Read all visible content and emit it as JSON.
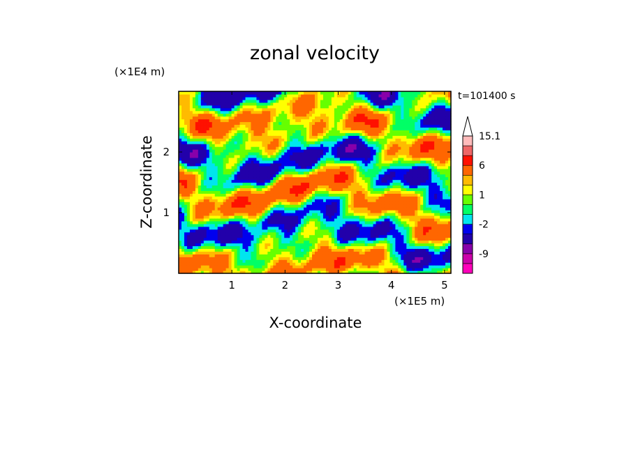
{
  "chart_data": {
    "type": "heatmap",
    "title": "zonal velocity",
    "xlabel": "X-coordinate",
    "ylabel": "Z-coordinate",
    "x_scale_label": "(×1E5 m)",
    "y_scale_label": "(×1E4 m)",
    "time_label": "t=101400 s",
    "xlim": [
      0,
      5.12
    ],
    "ylim": [
      0,
      3.0
    ],
    "x_ticks": [
      "1",
      "2",
      "3",
      "4",
      "5"
    ],
    "y_ticks": [
      "1",
      "2"
    ],
    "colorbar_levels": [
      -15,
      -12,
      -9,
      -6,
      -3,
      -2,
      -1,
      0,
      1,
      2,
      3,
      6,
      9,
      12,
      15.1
    ],
    "colorbar_tick_labels": [
      "15.1",
      "6",
      "1",
      "-2",
      "-9"
    ],
    "colorbar_colors": [
      "#ff00bb",
      "#cc00aa",
      "#8800aa",
      "#2200aa",
      "#0000ee",
      "#00e5ee",
      "#00ff66",
      "#66ff00",
      "#ffff00",
      "#ffbb00",
      "#ff6600",
      "#ff1100",
      "#ee6666",
      "#ffbbbb"
    ]
  }
}
